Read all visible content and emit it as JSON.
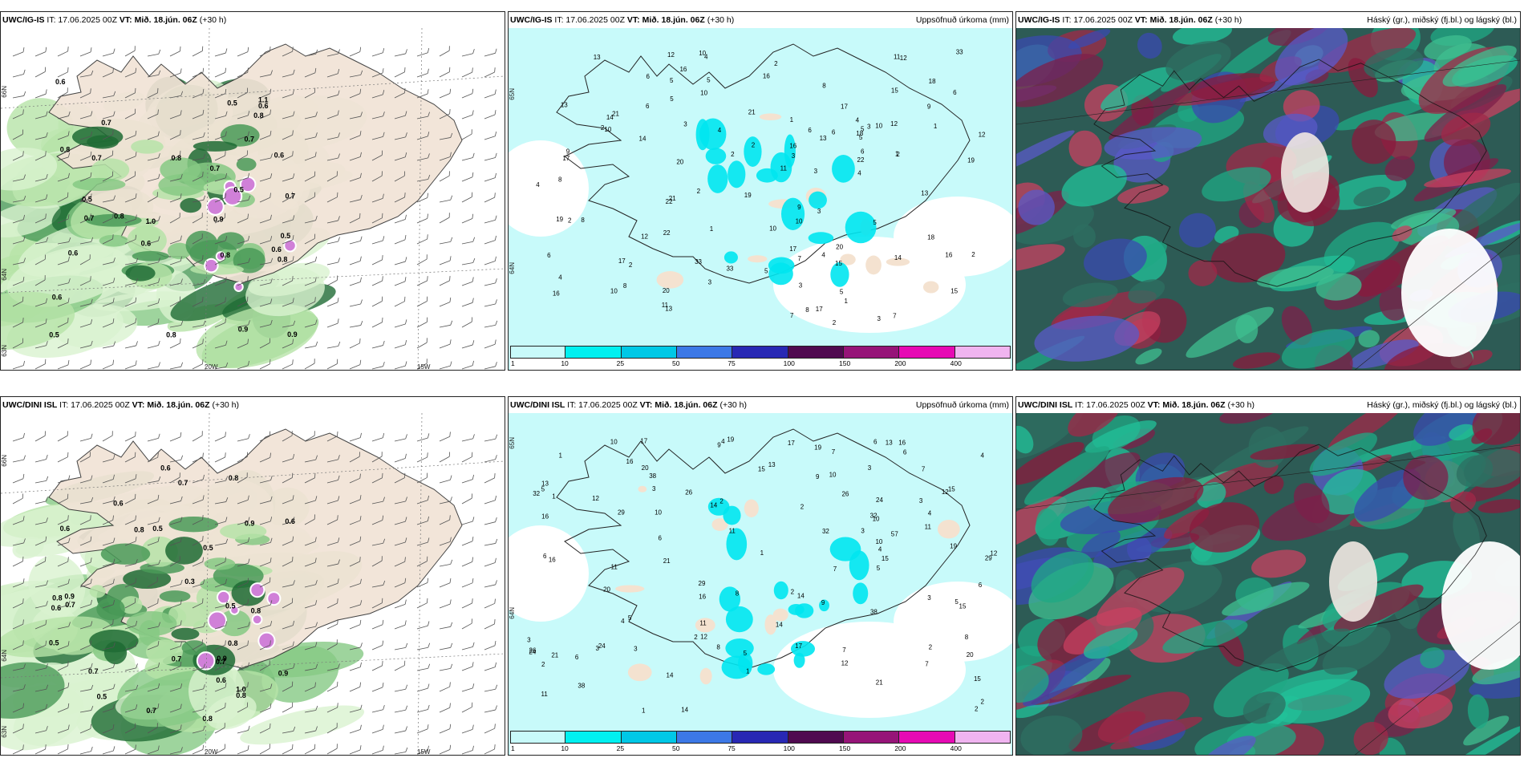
{
  "panels": {
    "p1": {
      "model": "UWC/IG-IS",
      "it": "IT: 17.06.2025 00Z",
      "vt_label": "VT:",
      "vt": "Mið. 18.jún. 06Z",
      "lead": "(+30 h)",
      "right": "",
      "lat_labels": [
        "66N",
        "64N",
        "63N"
      ],
      "lon_labels": [
        "20W",
        "15W"
      ]
    },
    "p2": {
      "model": "UWC/IG-IS",
      "it": "IT: 17.06.2025 00Z",
      "vt_label": "VT:",
      "vt": "Mið. 18.jún. 06Z",
      "lead": "(+30 h)",
      "right": "Uppsöfnuð úrkoma (mm)",
      "lat_labels": [
        "65N",
        "64N"
      ]
    },
    "p3": {
      "model": "UWC/IG-IS",
      "it": "IT: 17.06.2025 00Z",
      "vt_label": "VT:",
      "vt": "Mið. 18.jún. 06Z",
      "lead": "(+30 h)",
      "right": "Háský (gr.), miðský (fj.bl.) og lágský (bl.)"
    },
    "p4": {
      "model": "UWC/DINI ISL",
      "it": "IT: 17.06.2025 00Z",
      "vt_label": "VT:",
      "vt": "Mið. 18.jún. 06Z",
      "lead": "(+30 h)",
      "right": "",
      "lat_labels": [
        "66N",
        "64N",
        "63N"
      ],
      "lon_labels": [
        "20W",
        "15W"
      ]
    },
    "p5": {
      "model": "UWC/DINI ISL",
      "it": "IT: 17.06.2025 00Z",
      "vt_label": "VT:",
      "vt": "Mið. 18.jún. 06Z",
      "lead": "(+30 h)",
      "right": "Uppsöfnuð úrkoma (mm)",
      "lat_labels": [
        "65N",
        "64N"
      ]
    },
    "p6": {
      "model": "UWC/DINI ISL",
      "it": "IT: 17.06.2025 00Z",
      "vt_label": "VT:",
      "vt": "Mið. 18.jún. 06Z",
      "lead": "(+30 h)",
      "right": "Háský (gr.), miðský (fj.bl.) og lágský (bl.)"
    }
  },
  "colorbar": {
    "ticks": [
      "1",
      "10",
      "25",
      "50",
      "75",
      "100",
      "150",
      "200",
      "400"
    ],
    "colors": [
      "#c8fafa",
      "#00f0f0",
      "#00c8e6",
      "#3c78e6",
      "#2828b4",
      "#500a50",
      "#961478",
      "#e60ab4",
      "#f0b4f0"
    ]
  },
  "precip_values_top": [
    "1",
    "2",
    "3",
    "5",
    "3",
    "4",
    "5",
    "6",
    "7",
    "8",
    "12",
    "10",
    "13",
    "16",
    "14",
    "9",
    "11",
    "22",
    "20",
    "19",
    "17",
    "15",
    "21",
    "18",
    "33",
    "2",
    "3",
    "4",
    "6",
    "8",
    "10",
    "12",
    "13",
    "16",
    "17",
    "4",
    "5",
    "2",
    "1",
    "2",
    "6",
    "10"
  ],
  "precip_values_bottom": [
    "2",
    "1",
    "3",
    "4",
    "5",
    "6",
    "7",
    "8",
    "10",
    "12",
    "14",
    "13",
    "15",
    "16",
    "19",
    "21",
    "26",
    "29",
    "20",
    "32",
    "38",
    "24",
    "17",
    "11",
    "2",
    "3",
    "5",
    "6",
    "7",
    "9",
    "10",
    "11",
    "12",
    "14",
    "15",
    "16",
    "2",
    "4",
    "1",
    "3"
  ],
  "wind_values_top": [
    "0.8",
    "0.6",
    "0.7",
    "0.9",
    "0.6",
    "0.5",
    "0.8",
    "0.7",
    "1.0",
    "0.5",
    "0.6",
    "0.9",
    "1.1",
    "0.8",
    "0.7",
    "0.5",
    "0.6",
    "0.7",
    "0.9",
    "0.8",
    "0.5",
    "0.6",
    "0.7",
    "0.8",
    "0.5",
    "0.6",
    "0.8",
    "0.6",
    "0.7",
    "0.8"
  ],
  "wind_values_bottom": [
    "0.7",
    "0.5",
    "0.6",
    "0.9",
    "0.8",
    "0.5",
    "0.7",
    "0.6",
    "0.9",
    "1.0",
    "0.8",
    "0.5",
    "0.6",
    "0.7",
    "0.8",
    "0.3",
    "0.9",
    "0.6",
    "0.8",
    "0.7",
    "0.5",
    "0.6",
    "0.9",
    "0.8",
    "0.7",
    "0.5",
    "0.8",
    "0.6",
    "0.7",
    "0.8"
  ]
}
